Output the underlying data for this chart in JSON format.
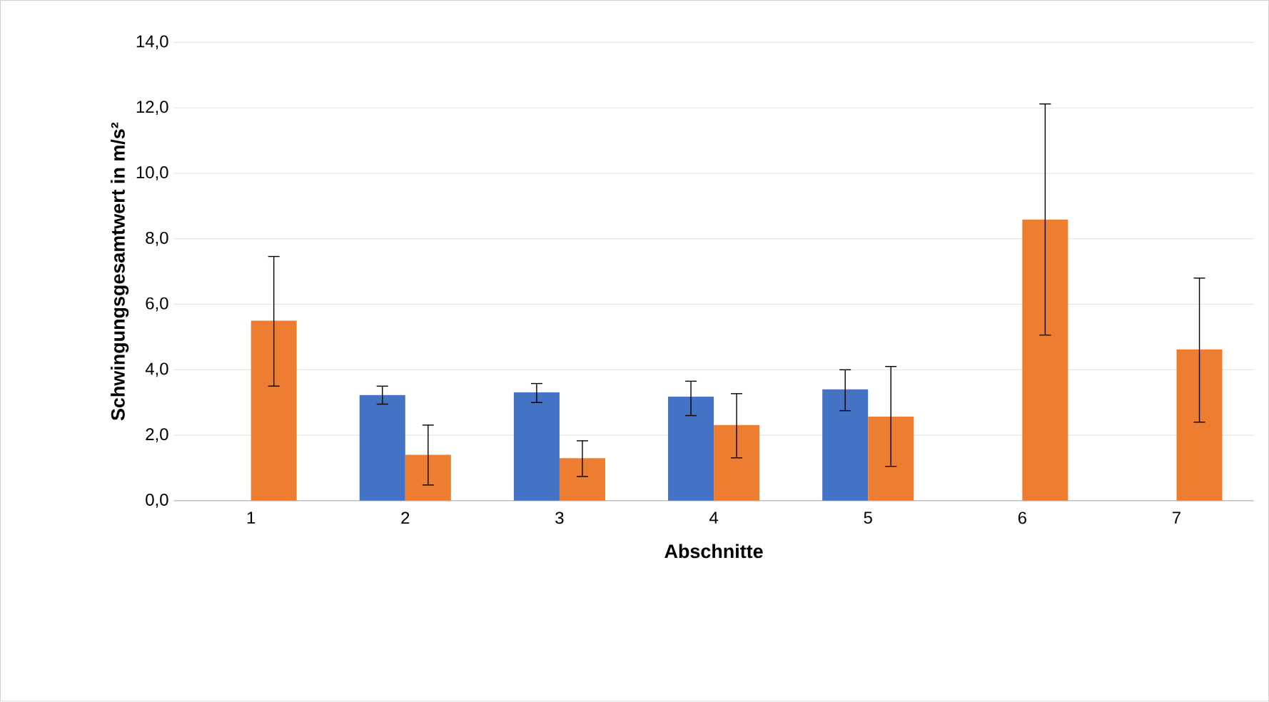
{
  "chart_data": {
    "type": "bar",
    "xlabel": "Abschnitte",
    "ylabel": "Schwingungsgesamtwert in m/s²",
    "categories": [
      "1",
      "2",
      "3",
      "4",
      "5",
      "6",
      "7"
    ],
    "series": [
      {
        "color": "#4472c4",
        "values": [
          null,
          3.23,
          3.31,
          3.18,
          3.4,
          null,
          null
        ],
        "errors": [
          null,
          [
            2.95,
            3.5
          ],
          [
            3.0,
            3.58
          ],
          [
            2.6,
            3.65
          ],
          [
            2.75,
            4.0
          ],
          null,
          null
        ]
      },
      {
        "color": "#ed7d31",
        "values": [
          5.5,
          1.4,
          1.3,
          2.31,
          2.57,
          8.59,
          4.62
        ],
        "errors": [
          [
            3.5,
            7.46
          ],
          [
            0.48,
            2.31
          ],
          [
            0.74,
            1.83
          ],
          [
            1.31,
            3.27
          ],
          [
            1.05,
            4.1
          ],
          [
            5.06,
            12.12
          ],
          [
            2.4,
            6.8
          ]
        ]
      }
    ],
    "ylim": [
      0,
      14
    ],
    "yticks": [
      {
        "value": 0,
        "label": "0,0"
      },
      {
        "value": 2,
        "label": "2,0"
      },
      {
        "value": 4,
        "label": "4,0"
      },
      {
        "value": 6,
        "label": "6,0"
      },
      {
        "value": 8,
        "label": "8,0"
      },
      {
        "value": 10,
        "label": "10,0"
      },
      {
        "value": 12,
        "label": "12,0"
      },
      {
        "value": 14,
        "label": "14,0"
      }
    ],
    "grid": "y"
  }
}
